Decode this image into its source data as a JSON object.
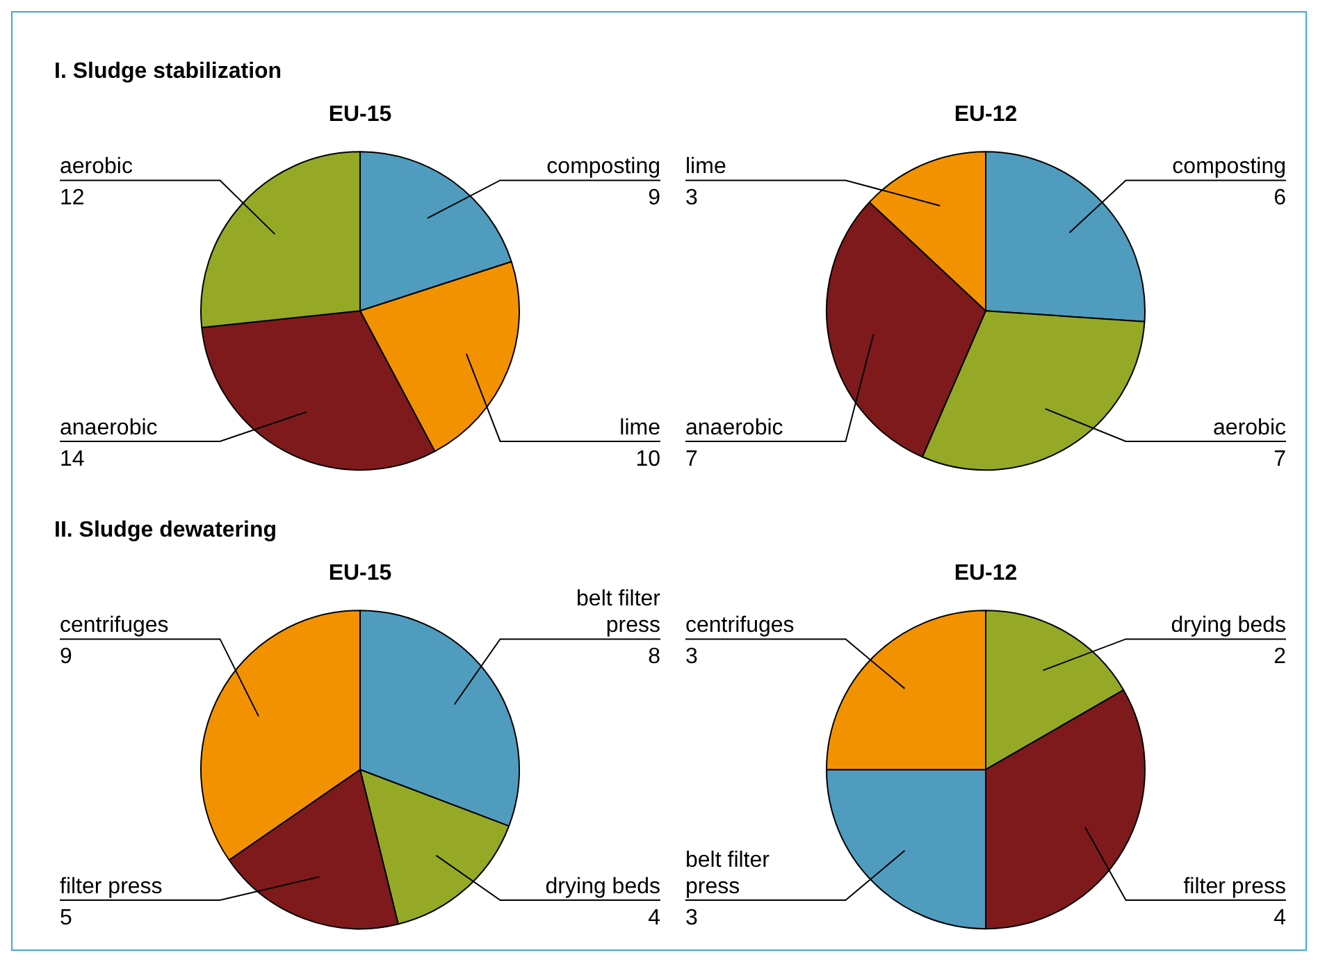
{
  "chart_data": [
    {
      "type": "pie",
      "title": "EU-15",
      "annotations": [
        "I. Sludge stabilization"
      ],
      "categories": [
        "composting",
        "lime",
        "anaerobic",
        "aerobic"
      ],
      "values": [
        9,
        10,
        14,
        12
      ],
      "colors": [
        "#4f9cbf",
        "#f39200",
        "#7f1a1c",
        "#95a926"
      ],
      "data_labels": true
    },
    {
      "type": "pie",
      "title": "EU-12",
      "categories": [
        "composting",
        "aerobic",
        "anaerobic",
        "lime"
      ],
      "values": [
        6,
        7,
        7,
        3
      ],
      "colors": [
        "#4f9cbf",
        "#95a926",
        "#7f1a1c",
        "#f39200"
      ],
      "data_labels": true
    },
    {
      "type": "pie",
      "title": "EU-15",
      "annotations": [
        "II. Sludge dewatering"
      ],
      "categories": [
        "belt filter press",
        "drying beds",
        "filter press",
        "centrifuges"
      ],
      "values": [
        8,
        4,
        5,
        9
      ],
      "colors": [
        "#4f9cbf",
        "#95a926",
        "#7f1a1c",
        "#f39200"
      ],
      "data_labels": true
    },
    {
      "type": "pie",
      "title": "EU-12",
      "categories": [
        "drying beds",
        "filter press",
        "belt filter press",
        "centrifuges"
      ],
      "values": [
        2,
        4,
        3,
        3
      ],
      "colors": [
        "#95a926",
        "#7f1a1c",
        "#4f9cbf",
        "#f39200"
      ],
      "data_labels": true
    }
  ]
}
